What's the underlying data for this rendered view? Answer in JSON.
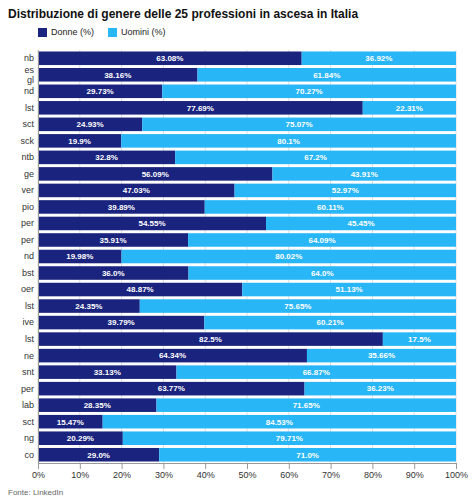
{
  "chart_data": {
    "type": "bar",
    "orientation": "horizontal",
    "stacked": true,
    "title": "Distribuzione di genere delle 25 professioni in ascesa in Italia",
    "annotations": [
      {
        "text": "Fonte: LinkedIn"
      }
    ],
    "categories": [
      "nb",
      "es\ngl",
      "nd",
      "lst",
      "sct",
      "sck",
      "ntb",
      "ge",
      "ver",
      "pio",
      "per",
      "per",
      "nd",
      "bst",
      "oer",
      "lst",
      "ive",
      "lst",
      "ne",
      "snt",
      "per",
      "lab",
      "sct",
      "ng",
      "co"
    ],
    "series": [
      {
        "name": "Donne (%)",
        "color": "#1a237e",
        "values": [
          63.08,
          38.16,
          29.73,
          77.69,
          24.93,
          19.9,
          32.8,
          56.09,
          47.03,
          39.89,
          54.55,
          35.91,
          19.98,
          36.0,
          48.87,
          24.35,
          39.79,
          82.5,
          64.34,
          33.13,
          63.77,
          28.35,
          15.47,
          20.29,
          29.0
        ],
        "value_labels": [
          "63.08%",
          "38.16%",
          "29.73%",
          "77.69%",
          "24.93%",
          "19.9%",
          "32.8%",
          "56.09%",
          "47.03%",
          "39.89%",
          "54.55%",
          "35.91%",
          "19.98%",
          "36.0%",
          "48.87%",
          "24.35%",
          "39.79%",
          "82.5%",
          "64.34%",
          "33.13%",
          "63.77%",
          "28.35%",
          "15.47%",
          "20.29%",
          "29.0%"
        ]
      },
      {
        "name": "Uomini (%)",
        "color": "#29b6f6",
        "values": [
          36.92,
          61.84,
          70.27,
          22.31,
          75.07,
          80.1,
          67.2,
          43.91,
          52.97,
          60.11,
          45.45,
          64.09,
          80.02,
          64.0,
          51.13,
          75.65,
          60.21,
          17.5,
          35.66,
          66.87,
          36.23,
          71.65,
          84.53,
          79.71,
          71.0
        ],
        "value_labels": [
          "36.92%",
          "61.84%",
          "70.27%",
          "22.31%",
          "75.07%",
          "80.1%",
          "67.2%",
          "43.91%",
          "52.97%",
          "60.11%",
          "45.45%",
          "64.09%",
          "80.02%",
          "64.0%",
          "51.13%",
          "75.65%",
          "60.21%",
          "17.5%",
          "35.66%",
          "66.87%",
          "36.23%",
          "71.65%",
          "84.53%",
          "79.71%",
          "71.0%"
        ]
      }
    ],
    "xlim": [
      0,
      100
    ],
    "xticks": [
      {
        "value": 0,
        "label": "0%"
      },
      {
        "value": 10,
        "label": "10%"
      },
      {
        "value": 20,
        "label": "20%"
      },
      {
        "value": 30,
        "label": "30%"
      },
      {
        "value": 40,
        "label": "40%"
      },
      {
        "value": 50,
        "label": "50%"
      },
      {
        "value": 60,
        "label": "60%"
      },
      {
        "value": 70,
        "label": "70%"
      },
      {
        "value": 80,
        "label": "80%"
      },
      {
        "value": 90,
        "label": "90%"
      },
      {
        "value": 100,
        "label": "100%"
      }
    ],
    "grid": true,
    "legend": "upper left",
    "data_labels": true
  }
}
